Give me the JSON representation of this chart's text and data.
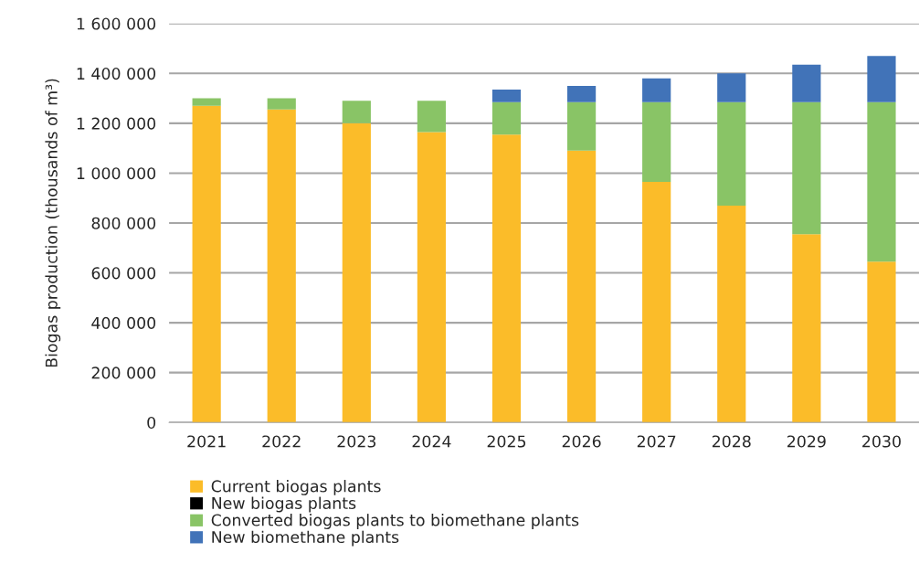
{
  "chart_data": {
    "type": "bar",
    "stacked": true,
    "ylabel": "Biogas production (thousands of m³)",
    "categories": [
      "2021",
      "2022",
      "2023",
      "2024",
      "2025",
      "2026",
      "2027",
      "2028",
      "2029",
      "2030"
    ],
    "series": [
      {
        "name": "Current biogas plants",
        "color": "#fbbc29",
        "values": [
          1270000,
          1255000,
          1200000,
          1165000,
          1155000,
          1090000,
          965000,
          870000,
          755000,
          645000
        ]
      },
      {
        "name": "New biogas plants",
        "color": "#000000",
        "values": [
          0,
          0,
          0,
          0,
          0,
          0,
          0,
          0,
          0,
          0
        ]
      },
      {
        "name": "Converted biogas plants to biomethane plants",
        "color": "#89c466",
        "values": [
          30000,
          45000,
          90000,
          125000,
          130000,
          195000,
          320000,
          415000,
          530000,
          640000
        ]
      },
      {
        "name": "New biomethane plants",
        "color": "#4173b8",
        "values": [
          0,
          0,
          0,
          0,
          50000,
          65000,
          95000,
          115000,
          150000,
          185000
        ]
      }
    ],
    "ylim": [
      0,
      1600000
    ],
    "yticks": [
      {
        "value": 0,
        "label": "0"
      },
      {
        "value": 200000,
        "label": "200 000"
      },
      {
        "value": 400000,
        "label": "400 000"
      },
      {
        "value": 600000,
        "label": "600 000"
      },
      {
        "value": 800000,
        "label": "800 000"
      },
      {
        "value": 1000000,
        "label": "1 000 000"
      },
      {
        "value": 1200000,
        "label": "1 200 000"
      },
      {
        "value": 1400000,
        "label": "1 400 000"
      },
      {
        "value": 1600000,
        "label": "1 600 000"
      }
    ],
    "grid": "y",
    "legend": "bottom"
  }
}
